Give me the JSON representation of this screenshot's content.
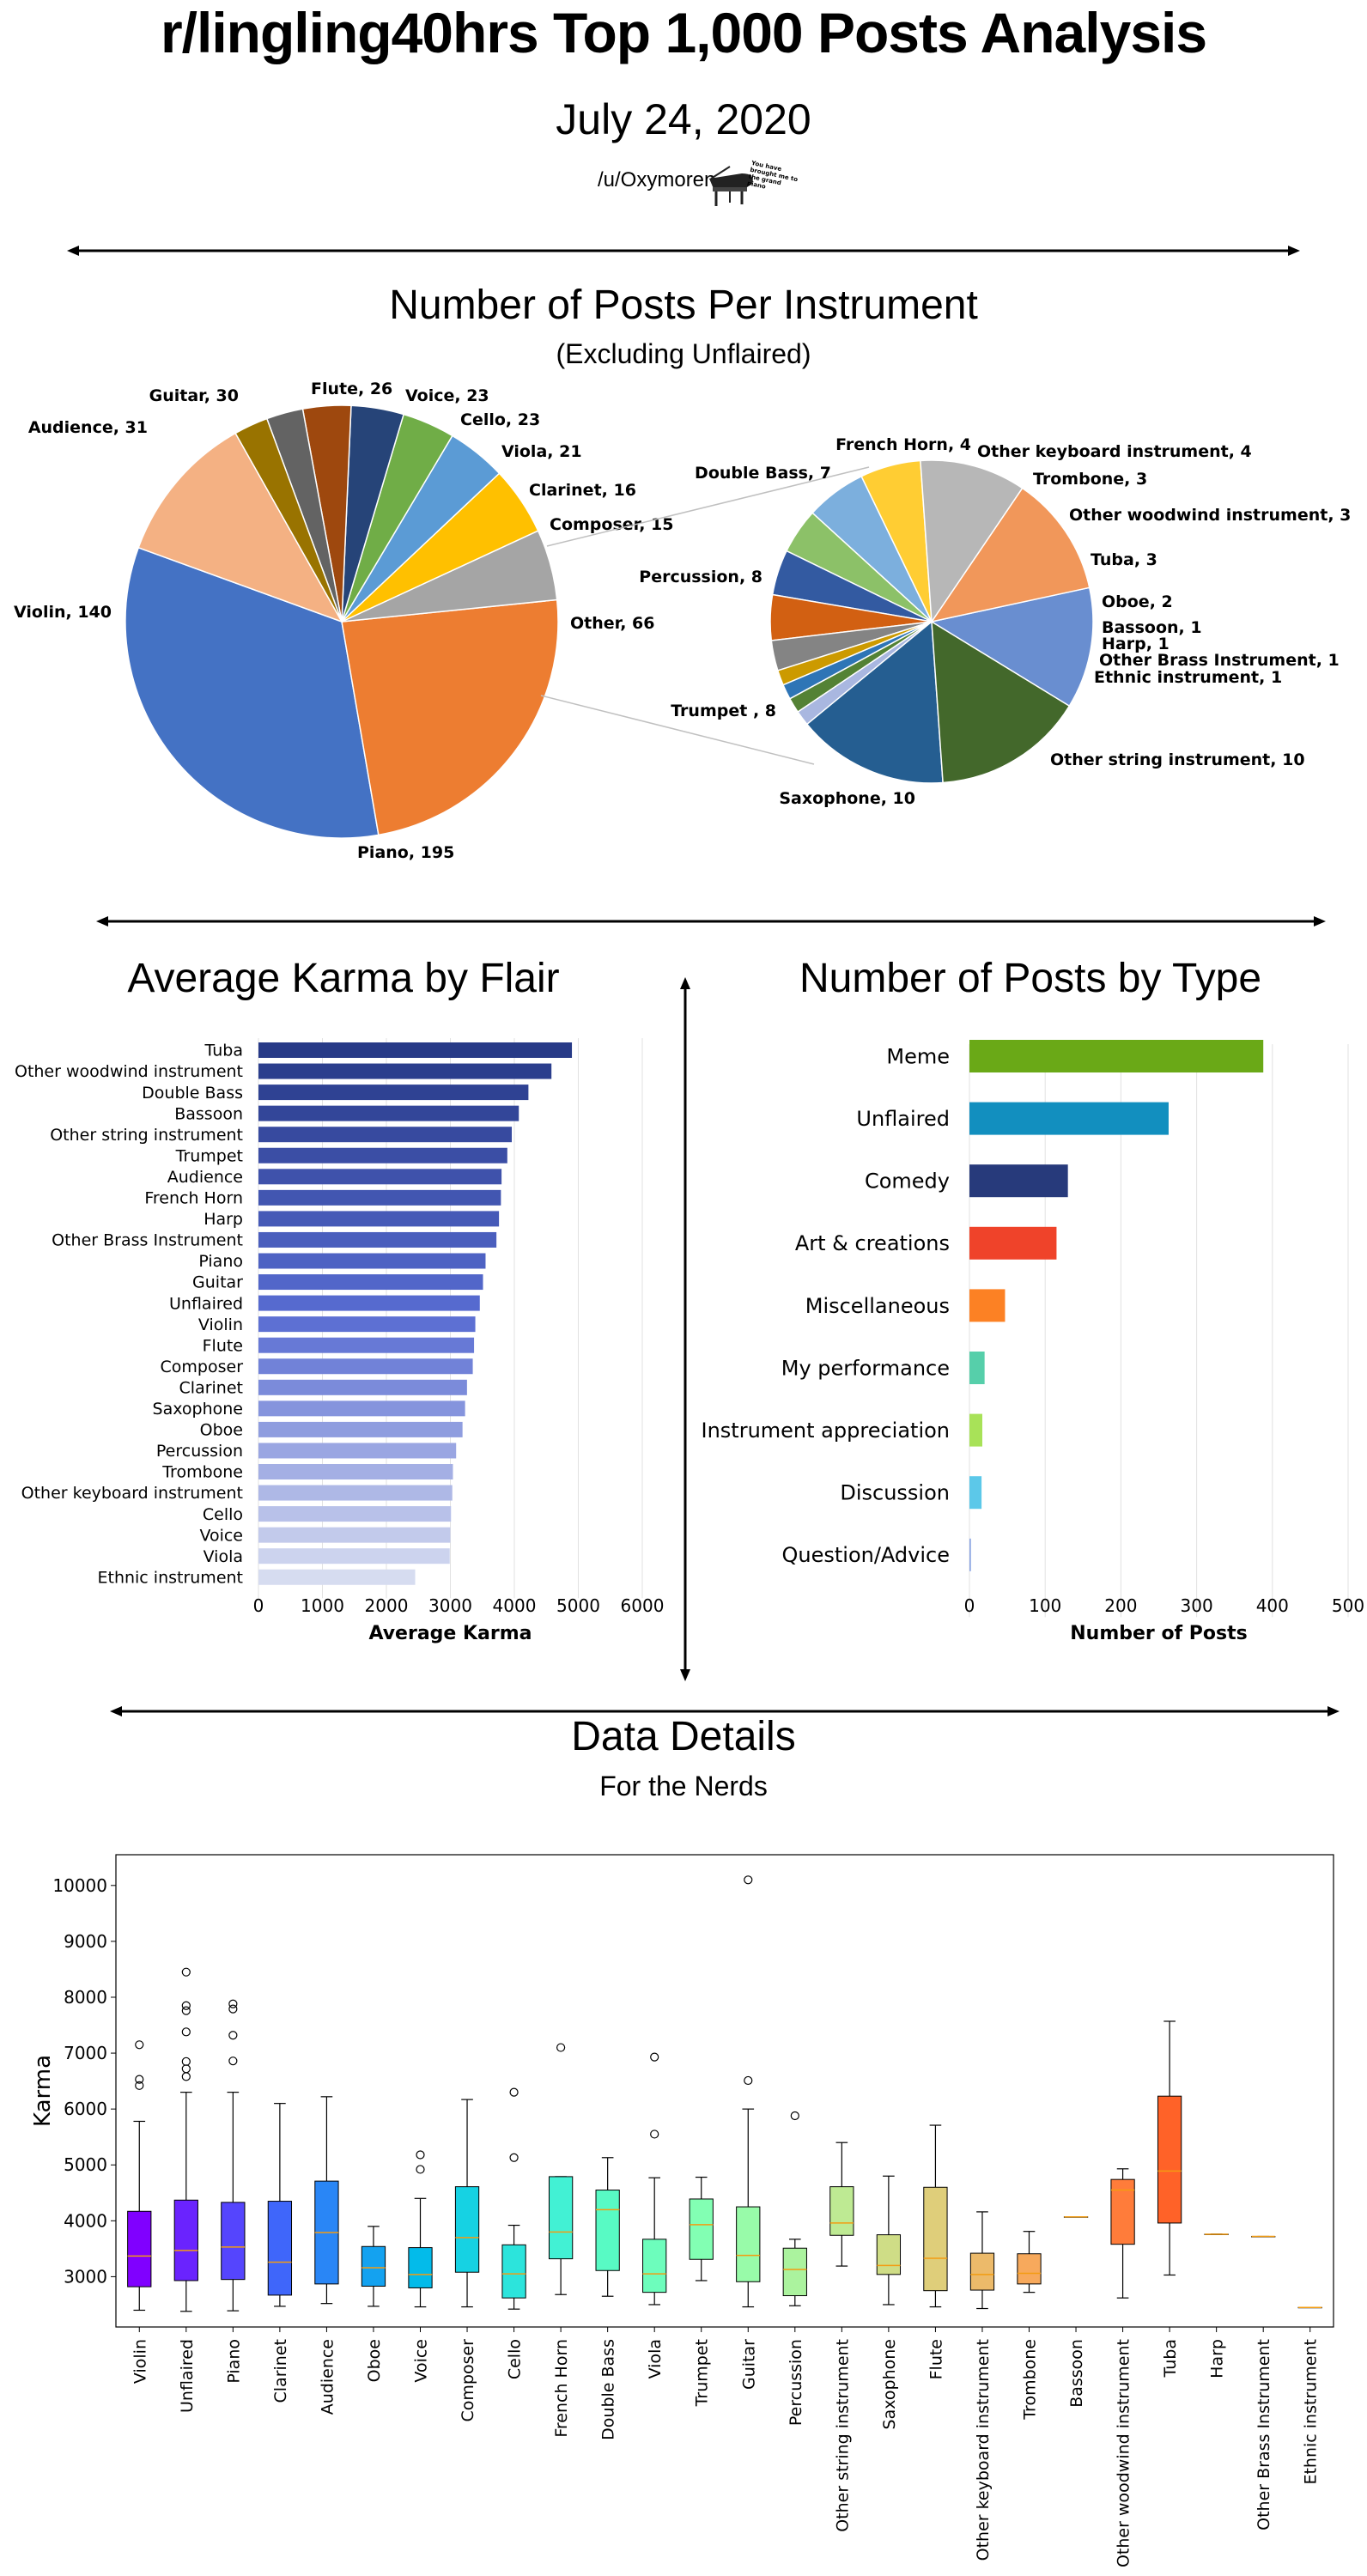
{
  "header": {
    "title": "r/lingling40hrs Top 1,000 Posts Analysis",
    "date": "July 24, 2020",
    "author": "/u/Oxymoren",
    "badge_text": "You have brought me to the grand piano"
  },
  "sections": {
    "pie_title": "Number of Posts Per Instrument",
    "pie_subtitle": "(Excluding Unflaired)",
    "karma_title": "Average Karma by Flair",
    "type_title": "Number of Posts by Type",
    "details_title": "Data Details",
    "details_subtitle": "For the Nerds"
  },
  "chart_data": [
    {
      "type": "pie",
      "slices": [
        {
          "label": "Piano",
          "value": 195,
          "color": "#4472c4"
        },
        {
          "label": "Violin",
          "value": 140,
          "color": "#ed7d31"
        },
        {
          "label": "Audience",
          "value": 31,
          "color": "#a5a5a5"
        },
        {
          "label": "Guitar",
          "value": 30,
          "color": "#ffc000"
        },
        {
          "label": "Flute",
          "value": 26,
          "color": "#5b9bd5"
        },
        {
          "label": "Voice",
          "value": 23,
          "color": "#70ad47"
        },
        {
          "label": "Cello",
          "value": 23,
          "color": "#264478"
        },
        {
          "label": "Viola",
          "value": 21,
          "color": "#9e480e"
        },
        {
          "label": "Clarinet",
          "value": 16,
          "color": "#636363"
        },
        {
          "label": "Composer",
          "value": 15,
          "color": "#997300"
        },
        {
          "label": "Other",
          "value": 66,
          "color": "#f4b183"
        }
      ]
    },
    {
      "type": "pie",
      "slices": [
        {
          "label": "French Horn",
          "value": 4,
          "color": "#ffcd33"
        },
        {
          "label": "Other keyboard instrument",
          "value": 4,
          "color": "#7cafdd"
        },
        {
          "label": "Trombone",
          "value": 3,
          "color": "#8cc168"
        },
        {
          "label": "Other woodwind instrument",
          "value": 3,
          "color": "#335aa1"
        },
        {
          "label": "Tuba",
          "value": 3,
          "color": "#d26012"
        },
        {
          "label": "Oboe",
          "value": 2,
          "color": "#848484"
        },
        {
          "label": "Bassoon",
          "value": 1,
          "color": "#cc9a00"
        },
        {
          "label": "Harp",
          "value": 1,
          "color": "#2e75b6"
        },
        {
          "label": "Other Brass Instrument",
          "value": 1,
          "color": "#548235"
        },
        {
          "label": "Ethnic instrument",
          "value": 1,
          "color": "#a9b7e0"
        },
        {
          "label": "Other string instrument",
          "value": 10,
          "color": "#255e91"
        },
        {
          "label": "Saxophone",
          "value": 10,
          "color": "#43682b"
        },
        {
          "label": "Trumpet ",
          "value": 8,
          "color": "#698ed0"
        },
        {
          "label": "Percussion",
          "value": 8,
          "color": "#f1975a"
        },
        {
          "label": "Double Bass",
          "value": 7,
          "color": "#b7b7b7"
        }
      ]
    },
    {
      "type": "bar",
      "orientation": "horizontal",
      "title": "Average Karma by Flair",
      "xlabel": "Average Karma",
      "xlim": [
        0,
        6000
      ],
      "xticks": [
        0,
        1000,
        2000,
        3000,
        4000,
        5000,
        6000
      ],
      "categories": [
        "Tuba",
        "Other woodwind instrument",
        "Double Bass",
        "Bassoon",
        "Other string instrument",
        "Trumpet",
        "Audience",
        "French Horn",
        "Harp",
        "Other Brass Instrument",
        "Piano",
        "Guitar",
        "Unflaired",
        "Violin",
        "Flute",
        "Composer",
        "Clarinet",
        "Saxophone",
        "Oboe",
        "Percussion",
        "Trombone",
        "Other keyboard instrument",
        "Cello",
        "Voice",
        "Viola",
        "Ethnic instrument"
      ],
      "values": [
        4900,
        4580,
        4220,
        4070,
        3960,
        3890,
        3800,
        3790,
        3760,
        3720,
        3550,
        3510,
        3460,
        3390,
        3370,
        3350,
        3260,
        3230,
        3190,
        3090,
        3040,
        3030,
        3010,
        3000,
        2990,
        2450
      ]
    },
    {
      "type": "bar",
      "orientation": "horizontal",
      "title": "Number of Posts by Type",
      "xlabel": "Number of Posts",
      "xlim": [
        0,
        500
      ],
      "xticks": [
        0,
        100,
        200,
        300,
        400,
        500
      ],
      "categories": [
        "Meme",
        "Unflaired",
        "Comedy",
        "Art & creations",
        "Miscellaneous",
        "My performance",
        "Instrument appreciation",
        "Discussion",
        "Question/Advice"
      ],
      "values": [
        388,
        263,
        130,
        115,
        47,
        20,
        17,
        16,
        2
      ],
      "colors": [
        "#6aa917",
        "#128fbf",
        "#273a7b",
        "#ef432a",
        "#fc8124",
        "#56cfaa",
        "#a8e258",
        "#5cc8e9",
        "#8fa7e4"
      ]
    },
    {
      "type": "box",
      "ylabel": "Karma",
      "ylim": [
        2100,
        10550
      ],
      "yticks": [
        3000,
        4000,
        5000,
        6000,
        7000,
        8000,
        9000,
        10000
      ],
      "boxes": [
        {
          "label": "Violin",
          "whislo": 2400,
          "q1": 2820,
          "med": 3370,
          "q3": 4170,
          "whishi": 5780,
          "fliers": [
            6420,
            6530,
            7150
          ],
          "color": "#8000ff"
        },
        {
          "label": "Unflaired",
          "whislo": 2380,
          "q1": 2930,
          "med": 3470,
          "q3": 4370,
          "whishi": 6300,
          "fliers": [
            6580,
            6720,
            6850,
            7380,
            7760,
            7850,
            8450
          ],
          "color": "#6a23fe"
        },
        {
          "label": "Piano",
          "whislo": 2390,
          "q1": 2950,
          "med": 3530,
          "q3": 4330,
          "whishi": 6300,
          "fliers": [
            6860,
            7320,
            7790,
            7880
          ],
          "color": "#5545fd"
        },
        {
          "label": "Clarinet",
          "whislo": 2470,
          "q1": 2670,
          "med": 3260,
          "q3": 4350,
          "whishi": 6100,
          "fliers": [],
          "color": "#3f66fa"
        },
        {
          "label": "Audience",
          "whislo": 2520,
          "q1": 2870,
          "med": 3790,
          "q3": 4710,
          "whishi": 6220,
          "fliers": [],
          "color": "#2986f6"
        },
        {
          "label": "Oboe",
          "whislo": 2470,
          "q1": 2830,
          "med": 3160,
          "q3": 3540,
          "whishi": 3900,
          "fliers": [],
          "color": "#14a2f0"
        },
        {
          "label": "Voice",
          "whislo": 2460,
          "q1": 2800,
          "med": 3040,
          "q3": 3520,
          "whishi": 4400,
          "fliers": [
            4920,
            5180
          ],
          "color": "#03bbea"
        },
        {
          "label": "Composer",
          "whislo": 2460,
          "q1": 3080,
          "med": 3700,
          "q3": 4610,
          "whishi": 6170,
          "fliers": [],
          "color": "#16d2e3"
        },
        {
          "label": "Cello",
          "whislo": 2420,
          "q1": 2620,
          "med": 3050,
          "q3": 3570,
          "whishi": 3920,
          "fliers": [
            5130,
            6300
          ],
          "color": "#2ce4dc"
        },
        {
          "label": "French Horn",
          "whislo": 2680,
          "q1": 3320,
          "med": 3800,
          "q3": 4790,
          "whishi": 4790,
          "fliers": [
            7100
          ],
          "color": "#42f1d4"
        },
        {
          "label": "Double Bass",
          "whislo": 2650,
          "q1": 3110,
          "med": 4200,
          "q3": 4550,
          "whishi": 5130,
          "fliers": [],
          "color": "#58fac4"
        },
        {
          "label": "Viola",
          "whislo": 2500,
          "q1": 2720,
          "med": 3050,
          "q3": 3670,
          "whishi": 4770,
          "fliers": [
            5550,
            6930
          ],
          "color": "#6dfdbc"
        },
        {
          "label": "Trumpet",
          "whislo": 2930,
          "q1": 3310,
          "med": 3930,
          "q3": 4390,
          "whishi": 4780,
          "fliers": [],
          "color": "#82ffb3"
        },
        {
          "label": "Guitar",
          "whislo": 2460,
          "q1": 2910,
          "med": 3380,
          "q3": 4250,
          "whishi": 6000,
          "fliers": [
            6510,
            10100
          ],
          "color": "#98fba9"
        },
        {
          "label": "Percussion",
          "whislo": 2480,
          "q1": 2660,
          "med": 3130,
          "q3": 3510,
          "whishi": 3670,
          "fliers": [
            5880
          ],
          "color": "#abf39e"
        },
        {
          "label": "Other string instrument",
          "whislo": 3190,
          "q1": 3740,
          "med": 3960,
          "q3": 4610,
          "whishi": 5400,
          "fliers": [],
          "color": "#beea93"
        },
        {
          "label": "Saxophone",
          "whislo": 2500,
          "q1": 3040,
          "med": 3200,
          "q3": 3750,
          "whishi": 4800,
          "fliers": [],
          "color": "#cfdd86"
        },
        {
          "label": "Flute",
          "whislo": 2460,
          "q1": 2750,
          "med": 3330,
          "q3": 4600,
          "whishi": 5710,
          "fliers": [],
          "color": "#dfce7a"
        },
        {
          "label": "Other keyboard instrument",
          "whislo": 2430,
          "q1": 2760,
          "med": 3040,
          "q3": 3420,
          "whishi": 4160,
          "fliers": [],
          "color": "#ecba6a"
        },
        {
          "label": "Trombone",
          "whislo": 2720,
          "q1": 2870,
          "med": 3060,
          "q3": 3410,
          "whishi": 3810,
          "fliers": [],
          "color": "#f7a95c"
        },
        {
          "label": "Bassoon",
          "whislo": 4070,
          "q1": 4070,
          "med": 4070,
          "q3": 4070,
          "whishi": 4070,
          "fliers": [],
          "color": "#ff934b"
        },
        {
          "label": "Other woodwind instrument",
          "whislo": 2620,
          "q1": 3580,
          "med": 4550,
          "q3": 4740,
          "whishi": 4930,
          "fliers": [],
          "color": "#ff7c3a"
        },
        {
          "label": "Tuba",
          "whislo": 3030,
          "q1": 3960,
          "med": 4890,
          "q3": 6230,
          "whishi": 7570,
          "fliers": [],
          "color": "#ff6228"
        },
        {
          "label": "Harp",
          "whislo": 3760,
          "q1": 3760,
          "med": 3760,
          "q3": 3760,
          "whishi": 3760,
          "fliers": [],
          "color": "#ff4816"
        },
        {
          "label": "Other Brass Instrument",
          "whislo": 3720,
          "q1": 3720,
          "med": 3720,
          "q3": 3720,
          "whishi": 3720,
          "fliers": [],
          "color": "#ff2c0b"
        },
        {
          "label": "Ethnic instrument",
          "whislo": 2450,
          "q1": 2450,
          "med": 2450,
          "q3": 2450,
          "whishi": 2450,
          "fliers": [],
          "color": "#ff0000"
        }
      ]
    }
  ]
}
